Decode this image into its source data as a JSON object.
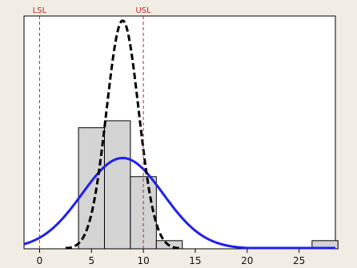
{
  "chart_data": {
    "type": "bar",
    "title": "",
    "xlabel": "",
    "ylabel": "",
    "x_ticks": [
      0,
      5,
      10,
      15,
      20,
      25
    ],
    "xlim": [
      -1.5,
      28.5
    ],
    "ylim": [
      0,
      1.0
    ],
    "grid": false,
    "histogram": {
      "bins": [
        {
          "start": 3.75,
          "end": 6.25,
          "height": 0.52
        },
        {
          "start": 6.25,
          "end": 8.75,
          "height": 0.55
        },
        {
          "start": 8.75,
          "end": 11.25,
          "height": 0.31
        },
        {
          "start": 11.25,
          "end": 13.75,
          "height": 0.035
        },
        {
          "start": 26.25,
          "end": 28.75,
          "height": 0.035
        }
      ],
      "color": "#d4d4d4"
    },
    "spec_limits": [
      {
        "label": "LSL",
        "x": 0,
        "color": "#c0262b"
      },
      {
        "label": "USL",
        "x": 10,
        "color": "#c0262b"
      }
    ],
    "series": [
      {
        "style": "solid",
        "color": "#1f1ff0",
        "mean": 8.0,
        "sd": 3.9,
        "peak": 0.39,
        "x_range": [
          -1.5,
          28.5
        ]
      },
      {
        "style": "dashed",
        "color": "#000000",
        "mean": 8.0,
        "sd": 1.55,
        "peak": 0.98,
        "x_range": [
          2.5,
          13.5
        ]
      }
    ]
  }
}
